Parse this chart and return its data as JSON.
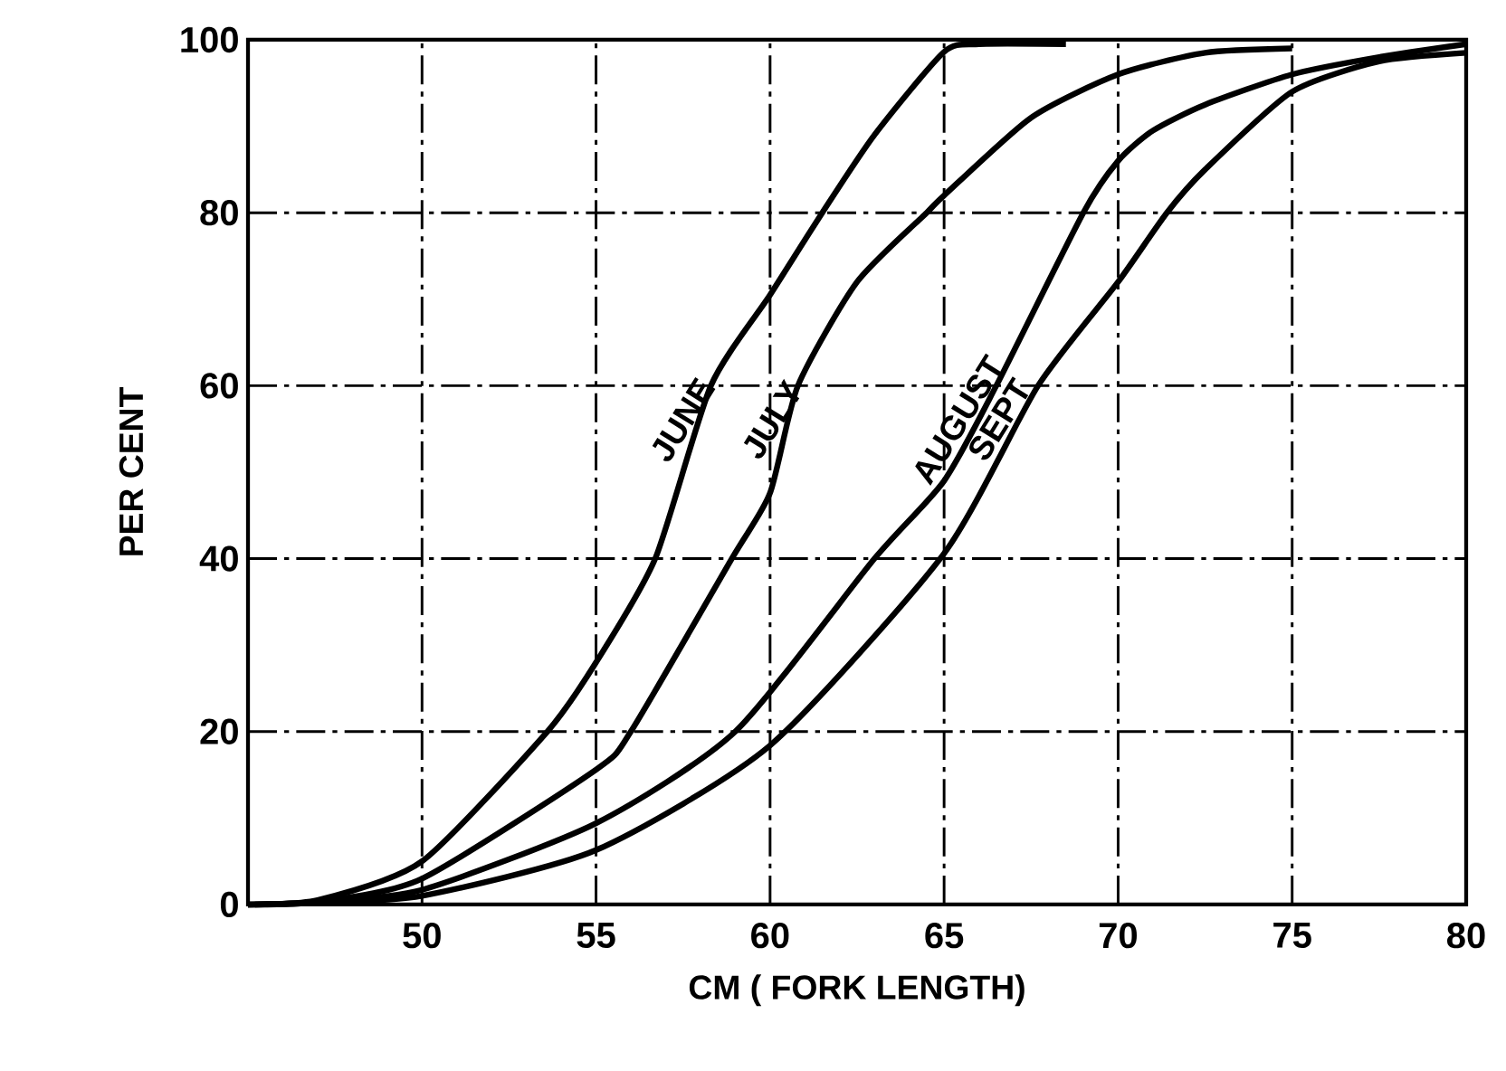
{
  "chart_data": {
    "type": "line",
    "xlabel": "CM ( FORK LENGTH)",
    "ylabel": "PER CENT",
    "xlim": [
      45,
      80
    ],
    "xticks": [
      50,
      55,
      60,
      65,
      70,
      75,
      80
    ],
    "ylim": [
      0,
      100
    ],
    "yticks": [
      0,
      20,
      40,
      60,
      80,
      100
    ],
    "grid": true,
    "series": [
      {
        "name": "JUNE",
        "color": "#000000",
        "x": [
          45,
          47,
          50,
          53.6,
          55,
          56.7,
          58.3,
          60,
          61.5,
          63,
          65,
          66,
          68.5
        ],
        "values": [
          0,
          0.5,
          5,
          20,
          28,
          40,
          60,
          70.5,
          80,
          89,
          98.6,
          99.5,
          99.5
        ]
      },
      {
        "name": "JULY",
        "color": "#000000",
        "x": [
          45,
          47,
          50,
          55,
          56,
          58.9,
          60,
          60.8,
          62.5,
          64.5,
          65,
          67.5,
          70,
          72.5,
          75
        ],
        "values": [
          0,
          0.3,
          3,
          15.6,
          20,
          40,
          47.6,
          60,
          72,
          80,
          82,
          91,
          96,
          98.5,
          99
        ]
      },
      {
        "name": "AUGUST",
        "color": "#000000",
        "x": [
          45,
          47,
          50,
          55,
          59,
          63,
          65,
          66.5,
          69,
          70,
          71,
          72.5,
          75,
          77.5,
          80
        ],
        "values": [
          0,
          0.3,
          1.7,
          9.4,
          20,
          40,
          49,
          60,
          80,
          86,
          89.5,
          92.5,
          96,
          98,
          99.5
        ]
      },
      {
        "name": "SEPT",
        "color": "#000000",
        "x": [
          45.2,
          47,
          50,
          55,
          60,
          65,
          67.7,
          70,
          71.4,
          72.5,
          75,
          77.5,
          80
        ],
        "values": [
          0,
          0.2,
          1,
          6.3,
          18.4,
          40.6,
          60,
          72,
          80,
          85,
          94,
          97.5,
          98.5
        ]
      }
    ]
  }
}
